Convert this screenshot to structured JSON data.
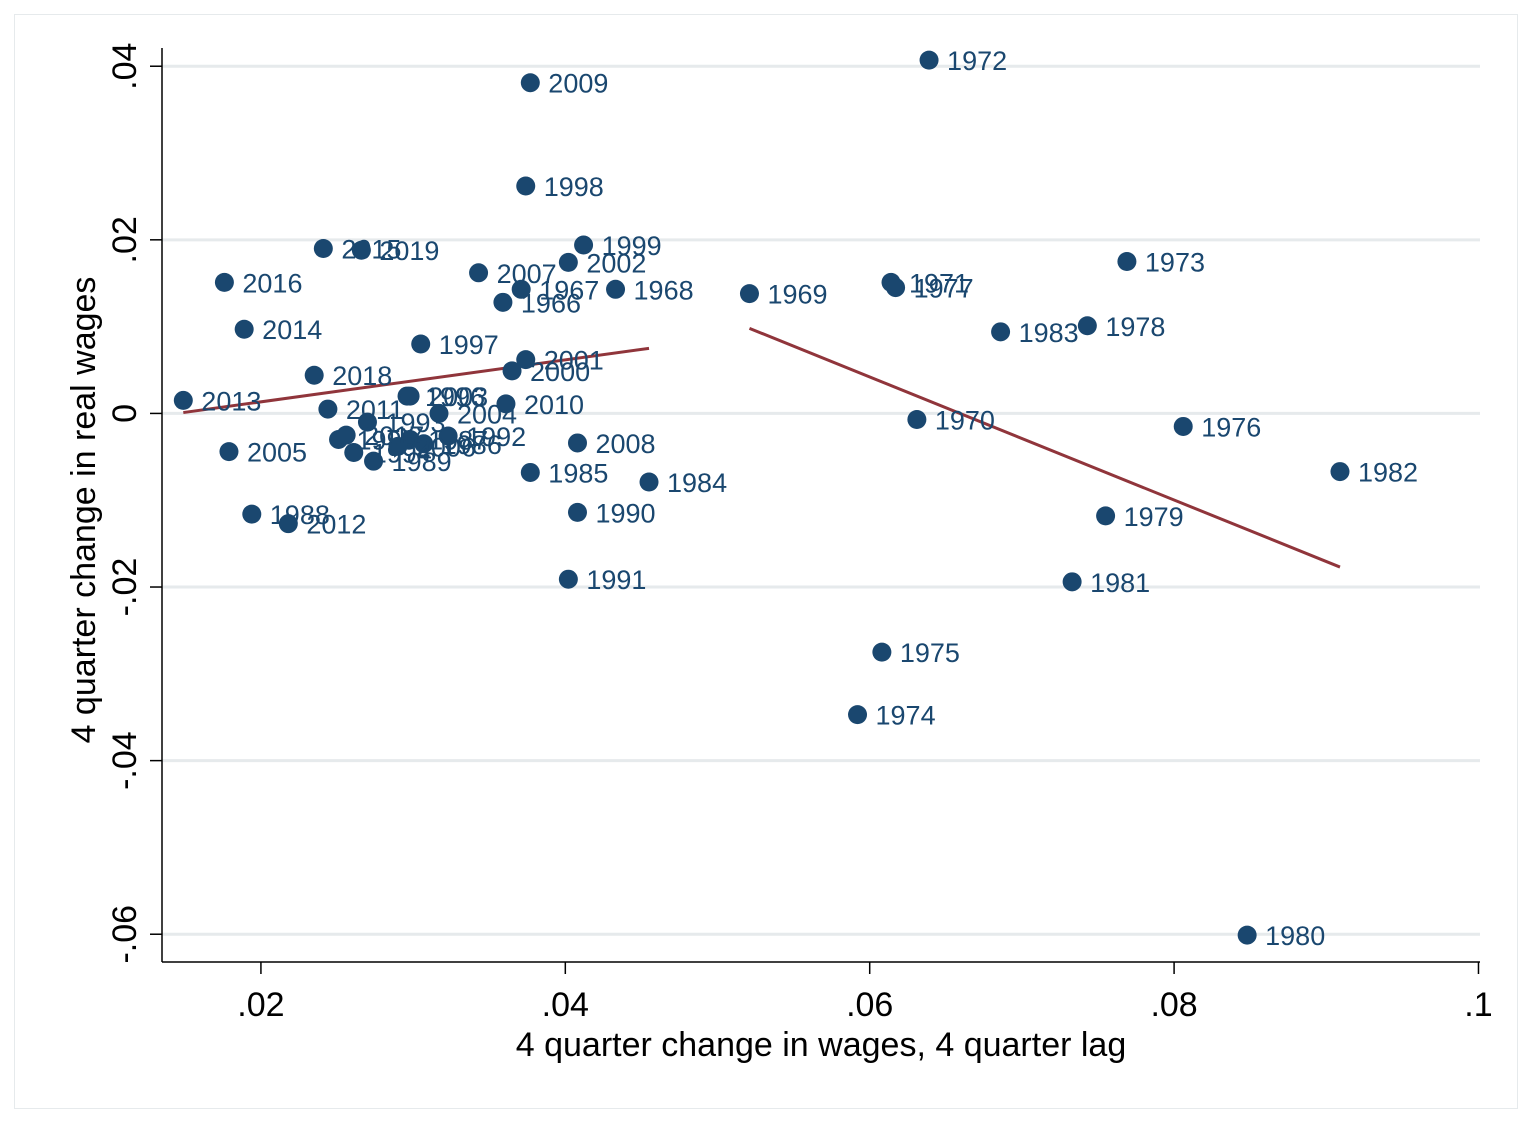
{
  "chart_data": {
    "type": "scatter",
    "title": "",
    "xlabel": "4 quarter change in wages, 4 quarter lag",
    "ylabel": "4 quarter change in real wages",
    "xlim": [
      0.0135,
      0.1001
    ],
    "ylim": [
      -0.0632,
      0.0421
    ],
    "x_ticks": [
      {
        "value": 0.02,
        "label": ".02"
      },
      {
        "value": 0.04,
        "label": ".04"
      },
      {
        "value": 0.06,
        "label": ".06"
      },
      {
        "value": 0.08,
        "label": ".08"
      },
      {
        "value": 0.1,
        "label": ".1"
      }
    ],
    "y_ticks": [
      {
        "value": 0.04,
        "label": ".04"
      },
      {
        "value": 0.02,
        "label": ".02"
      },
      {
        "value": 0,
        "label": "0"
      },
      {
        "value": -0.02,
        "label": "-.02"
      },
      {
        "value": -0.04,
        "label": "-.04"
      },
      {
        "value": -0.06,
        "label": "-.06"
      }
    ],
    "grid": true,
    "colors": {
      "marker": "#1a476f",
      "fit_line": "#90353b",
      "grid": "#e6eaec"
    },
    "points": [
      {
        "label": "1966",
        "x": 0.0359,
        "y": 0.0128
      },
      {
        "label": "1967",
        "x": 0.0371,
        "y": 0.0143
      },
      {
        "label": "1968",
        "x": 0.0433,
        "y": 0.0143
      },
      {
        "label": "1969",
        "x": 0.0521,
        "y": 0.0138
      },
      {
        "label": "1970",
        "x": 0.0631,
        "y": -0.0007
      },
      {
        "label": "1971",
        "x": 0.0614,
        "y": 0.0151
      },
      {
        "label": "1972",
        "x": 0.0639,
        "y": 0.0407
      },
      {
        "label": "1973",
        "x": 0.0769,
        "y": 0.0175
      },
      {
        "label": "1974",
        "x": 0.0592,
        "y": -0.0347
      },
      {
        "label": "1975",
        "x": 0.0608,
        "y": -0.0275
      },
      {
        "label": "1976",
        "x": 0.0806,
        "y": -0.0015
      },
      {
        "label": "1977",
        "x": 0.0617,
        "y": 0.0145
      },
      {
        "label": "1978",
        "x": 0.0743,
        "y": 0.0101
      },
      {
        "label": "1979",
        "x": 0.0755,
        "y": -0.0118
      },
      {
        "label": "1980",
        "x": 0.0848,
        "y": -0.0601
      },
      {
        "label": "1981",
        "x": 0.0733,
        "y": -0.0194
      },
      {
        "label": "1982",
        "x": 0.0909,
        "y": -0.0067
      },
      {
        "label": "1983",
        "x": 0.0686,
        "y": 0.0094
      },
      {
        "label": "1984",
        "x": 0.0455,
        "y": -0.0079
      },
      {
        "label": "1985",
        "x": 0.0377,
        "y": -0.0068
      },
      {
        "label": "1986",
        "x": 0.0307,
        "y": -0.0035
      },
      {
        "label": "1987",
        "x": 0.0298,
        "y": -0.003
      },
      {
        "label": "1988",
        "x": 0.0194,
        "y": -0.0116
      },
      {
        "label": "1989",
        "x": 0.0274,
        "y": -0.0055
      },
      {
        "label": "1990",
        "x": 0.0408,
        "y": -0.0114
      },
      {
        "label": "1991",
        "x": 0.0402,
        "y": -0.0191
      },
      {
        "label": "1992",
        "x": 0.0323,
        "y": -0.0026
      },
      {
        "label": "1993",
        "x": 0.027,
        "y": -0.001
      },
      {
        "label": "1994",
        "x": 0.0261,
        "y": -0.0045
      },
      {
        "label": "1995",
        "x": 0.0251,
        "y": -0.003
      },
      {
        "label": "1996",
        "x": 0.0296,
        "y": 0.002
      },
      {
        "label": "1997",
        "x": 0.0305,
        "y": 0.008
      },
      {
        "label": "1998",
        "x": 0.0374,
        "y": 0.0262
      },
      {
        "label": "1999",
        "x": 0.0412,
        "y": 0.0194
      },
      {
        "label": "2000",
        "x": 0.0365,
        "y": 0.0049
      },
      {
        "label": "2001",
        "x": 0.0374,
        "y": 0.0062
      },
      {
        "label": "2002",
        "x": 0.0402,
        "y": 0.0174
      },
      {
        "label": "2003",
        "x": 0.0298,
        "y": 0.002
      },
      {
        "label": "2004",
        "x": 0.0317,
        "y": 0.0
      },
      {
        "label": "2005",
        "x": 0.0179,
        "y": -0.0044
      },
      {
        "label": "2006",
        "x": 0.029,
        "y": -0.0038
      },
      {
        "label": "2007",
        "x": 0.0343,
        "y": 0.0162
      },
      {
        "label": "2008",
        "x": 0.0408,
        "y": -0.0034
      },
      {
        "label": "2009",
        "x": 0.0377,
        "y": 0.0381
      },
      {
        "label": "2010",
        "x": 0.0361,
        "y": 0.0011
      },
      {
        "label": "2011",
        "x": 0.0244,
        "y": 0.0005
      },
      {
        "label": "2012",
        "x": 0.0218,
        "y": -0.0127
      },
      {
        "label": "2013",
        "x": 0.0149,
        "y": 0.0015
      },
      {
        "label": "2014",
        "x": 0.0189,
        "y": 0.0097
      },
      {
        "label": "2015",
        "x": 0.0241,
        "y": 0.019
      },
      {
        "label": "2016",
        "x": 0.0176,
        "y": 0.0151
      },
      {
        "label": "2017",
        "x": 0.0256,
        "y": -0.0025
      },
      {
        "label": "2018",
        "x": 0.0235,
        "y": 0.0044
      },
      {
        "label": "2019",
        "x": 0.0266,
        "y": 0.0188
      }
    ],
    "fit_lines": [
      {
        "name": "fit-pre",
        "x": [
          0.0149,
          0.0455
        ],
        "y": [
          0.0001,
          0.0075
        ]
      },
      {
        "name": "fit-post",
        "x": [
          0.0521,
          0.0909
        ],
        "y": [
          0.0098,
          -0.0177
        ]
      }
    ]
  }
}
